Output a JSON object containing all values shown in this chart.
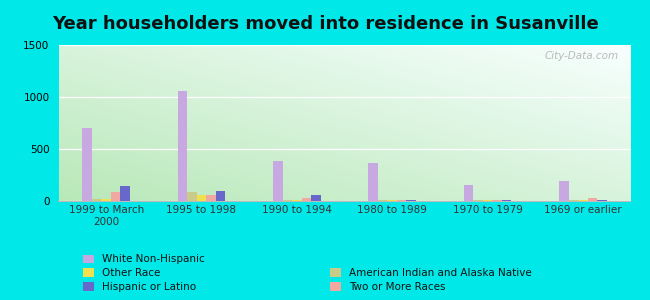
{
  "title": "Year householders moved into residence in Susanville",
  "categories": [
    "1999 to March\n2000",
    "1995 to 1998",
    "1990 to 1994",
    "1980 to 1989",
    "1970 to 1979",
    "1969 or earlier"
  ],
  "series": {
    "White Non-Hispanic": [
      700,
      1060,
      380,
      370,
      155,
      195
    ],
    "American Indian and Alaska Native": [
      15,
      90,
      5,
      5,
      5,
      5
    ],
    "Other Race": [
      20,
      60,
      5,
      5,
      5,
      5
    ],
    "Two or More Races": [
      90,
      55,
      30,
      10,
      5,
      30
    ],
    "Hispanic or Latino": [
      140,
      100,
      55,
      10,
      5,
      5
    ]
  },
  "colors": {
    "White Non-Hispanic": "#c8a8e0",
    "American Indian and Alaska Native": "#c8cc88",
    "Other Race": "#f0e050",
    "Two or More Races": "#f0a8a0",
    "Hispanic or Latino": "#6868cc"
  },
  "legend_left": [
    "White Non-Hispanic",
    "Other Race",
    "Hispanic or Latino"
  ],
  "legend_right": [
    "American Indian and Alaska Native",
    "Two or More Races"
  ],
  "ylim": [
    0,
    1500
  ],
  "yticks": [
    0,
    500,
    1000,
    1500
  ],
  "bar_width": 0.1,
  "plot_bg_color_bottom_left": "#b8e8b8",
  "plot_bg_color_top_right": "#f8ffff",
  "outer_background": "#00e8e8",
  "watermark": "City-Data.com",
  "title_fontsize": 13,
  "tick_fontsize": 7.5,
  "legend_fontsize": 7.5
}
